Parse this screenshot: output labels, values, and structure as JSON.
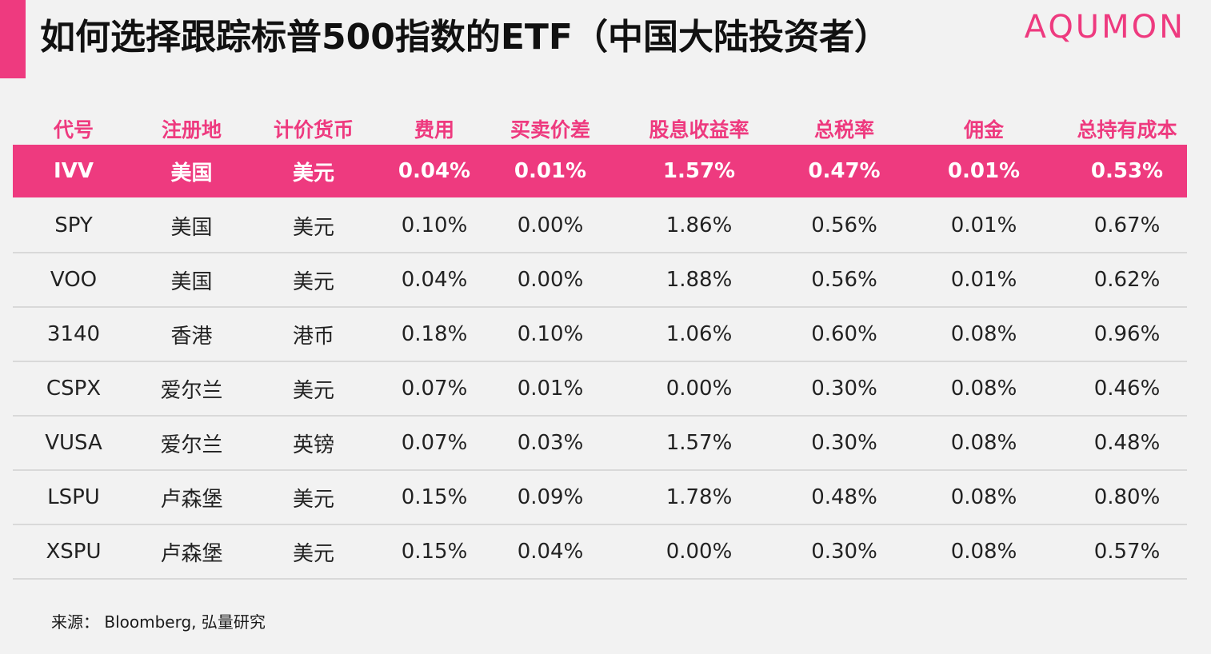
{
  "title": "如何选择跟踪标普500指数的ETF（中国大陆投资者）",
  "brand": "AQUMON",
  "source": "来源： Bloomberg, 弘量研究",
  "colors": {
    "accent": "#ee3a7f",
    "background": "#f2f2f2",
    "text": "#1a1a1a"
  },
  "chart_data": {
    "type": "table",
    "highlighted_row": 0,
    "columns": [
      "代号",
      "注册地",
      "计价货币",
      "费用",
      "买卖价差",
      "股息收益率",
      "总税率",
      "佣金",
      "总持有成本"
    ],
    "rows": [
      [
        "IVV",
        "美国",
        "美元",
        "0.04%",
        "0.01%",
        "1.57%",
        "0.47%",
        "0.01%",
        "0.53%"
      ],
      [
        "SPY",
        "美国",
        "美元",
        "0.10%",
        "0.00%",
        "1.86%",
        "0.56%",
        "0.01%",
        "0.67%"
      ],
      [
        "VOO",
        "美国",
        "美元",
        "0.04%",
        "0.00%",
        "1.88%",
        "0.56%",
        "0.01%",
        "0.62%"
      ],
      [
        "3140",
        "香港",
        "港币",
        "0.18%",
        "0.10%",
        "1.06%",
        "0.60%",
        "0.08%",
        "0.96%"
      ],
      [
        "CSPX",
        "爱尔兰",
        "美元",
        "0.07%",
        "0.01%",
        "0.00%",
        "0.30%",
        "0.08%",
        "0.46%"
      ],
      [
        "VUSA",
        "爱尔兰",
        "英镑",
        "0.07%",
        "0.03%",
        "1.57%",
        "0.30%",
        "0.08%",
        "0.48%"
      ],
      [
        "LSPU",
        "卢森堡",
        "美元",
        "0.15%",
        "0.09%",
        "1.78%",
        "0.48%",
        "0.08%",
        "0.80%"
      ],
      [
        "XSPU",
        "卢森堡",
        "美元",
        "0.15%",
        "0.04%",
        "0.00%",
        "0.30%",
        "0.08%",
        "0.57%"
      ]
    ]
  }
}
